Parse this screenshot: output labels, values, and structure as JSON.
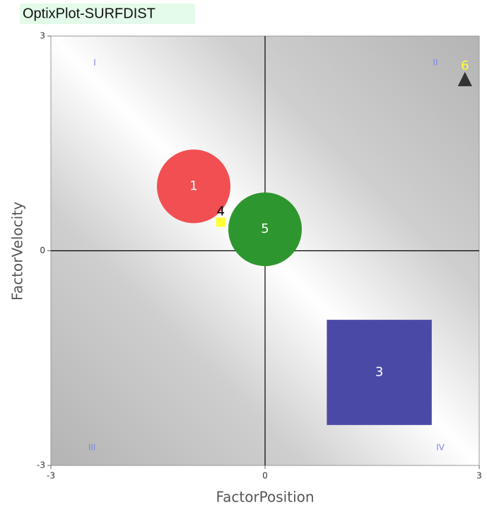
{
  "chart_data": {
    "type": "scatter",
    "title": "OptixPlot-SURFDIST",
    "xlabel": "FactorPosition",
    "ylabel": "FactorVelocity",
    "xlim": [
      -3,
      3
    ],
    "ylim": [
      -3,
      3
    ],
    "xticks": [
      -3,
      0,
      3
    ],
    "yticks": [
      -3,
      0,
      3
    ],
    "quadrant_labels": [
      "I",
      "II",
      "III",
      "IV"
    ],
    "series": [
      {
        "name": "1",
        "shape": "circle",
        "color": "#f24f52",
        "label_color": "#ffffff",
        "x": [
          -1.0
        ],
        "values": [
          0.9
        ],
        "size": [
          1.03
        ]
      },
      {
        "name": "3",
        "shape": "square",
        "color": "#4a4aa6",
        "label_color": "#ffffff",
        "x": [
          1.6
        ],
        "values": [
          -1.7
        ],
        "size": [
          1.47
        ]
      },
      {
        "name": "4",
        "shape": "square",
        "color": "#ffff33",
        "label_color": "#000000",
        "x": [
          -0.62
        ],
        "values": [
          0.4
        ],
        "size": [
          0.13
        ]
      },
      {
        "name": "5",
        "shape": "circle",
        "color": "#2e962e",
        "label_color": "#ffffff",
        "x": [
          0.0
        ],
        "values": [
          0.3
        ],
        "size": [
          1.03
        ]
      },
      {
        "name": "6",
        "shape": "triangle",
        "color": "#333333",
        "label_color": "#ffff33",
        "x": [
          2.8
        ],
        "values": [
          2.4
        ],
        "size": [
          0.2
        ]
      }
    ]
  }
}
